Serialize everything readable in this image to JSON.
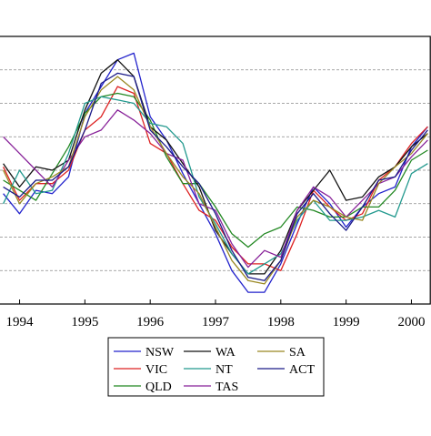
{
  "chart_data": {
    "type": "line",
    "title": "",
    "xlabel": "",
    "ylabel": "",
    "xlim": [
      1993.7,
      2000.3
    ],
    "ylim": [
      0,
      8
    ],
    "x_ticks": [
      1994,
      1995,
      1996,
      1997,
      1998,
      1999,
      2000
    ],
    "x_tick_labels": [
      "1994",
      "1995",
      "1996",
      "1997",
      "1998",
      "1999",
      "2000"
    ],
    "y_grid_values": [
      1,
      2,
      3,
      4,
      5,
      6,
      7
    ],
    "grid": "horizontal-dashed",
    "legend_position": "bottom-center",
    "x": [
      1993.75,
      1994.0,
      1994.25,
      1994.5,
      1994.75,
      1995.0,
      1995.25,
      1995.5,
      1995.75,
      1996.0,
      1996.25,
      1996.5,
      1996.75,
      1997.0,
      1997.25,
      1997.5,
      1997.75,
      1998.0,
      1998.25,
      1998.5,
      1998.75,
      1999.0,
      1999.25,
      1999.5,
      1999.75,
      2000.0,
      2000.25
    ],
    "series": [
      {
        "name": "NSW",
        "color": "#2222cc",
        "values": [
          3.3,
          2.7,
          3.4,
          3.3,
          3.8,
          5.7,
          6.5,
          7.3,
          7.5,
          5.6,
          4.9,
          3.9,
          3.0,
          2.1,
          1.0,
          0.35,
          0.35,
          1.2,
          2.4,
          3.5,
          3.0,
          2.3,
          2.9,
          3.3,
          3.5,
          4.7,
          5.3
        ]
      },
      {
        "name": "VIC",
        "color": "#dd2222",
        "values": [
          4.1,
          3.1,
          3.6,
          3.6,
          4.0,
          5.2,
          5.6,
          6.5,
          6.3,
          4.8,
          4.5,
          3.6,
          2.8,
          2.5,
          1.7,
          1.2,
          1.2,
          1.0,
          2.1,
          3.4,
          2.9,
          2.5,
          2.7,
          3.7,
          4.1,
          4.8,
          5.3
        ]
      },
      {
        "name": "QLD",
        "color": "#228822",
        "values": [
          3.7,
          3.4,
          3.1,
          3.9,
          4.7,
          5.7,
          6.2,
          6.3,
          6.2,
          5.5,
          4.4,
          3.6,
          3.6,
          2.9,
          2.1,
          1.7,
          2.1,
          2.3,
          2.9,
          2.8,
          2.6,
          2.6,
          2.9,
          2.9,
          3.4,
          4.3,
          4.6
        ]
      },
      {
        "name": "WA",
        "color": "#111111",
        "values": [
          4.2,
          3.5,
          4.1,
          4.0,
          4.3,
          5.8,
          6.9,
          7.3,
          6.8,
          5.3,
          4.9,
          4.2,
          3.5,
          2.2,
          1.5,
          0.9,
          0.9,
          1.6,
          2.8,
          3.4,
          4.0,
          3.1,
          3.2,
          3.8,
          4.1,
          4.7,
          5.1
        ]
      },
      {
        "name": "NT",
        "color": "#22998e",
        "values": [
          3.0,
          4.0,
          3.3,
          3.4,
          4.5,
          6.0,
          6.2,
          6.1,
          6.0,
          5.4,
          5.3,
          4.8,
          3.2,
          2.4,
          1.5,
          0.9,
          1.2,
          1.5,
          2.5,
          3.1,
          2.5,
          2.5,
          2.6,
          2.8,
          2.6,
          3.9,
          4.2
        ]
      },
      {
        "name": "TAS",
        "color": "#882299",
        "values": [
          5.0,
          4.5,
          4.0,
          3.5,
          4.3,
          5.0,
          5.2,
          5.8,
          5.5,
          5.1,
          4.5,
          4.3,
          3.0,
          2.8,
          1.8,
          1.1,
          1.6,
          1.4,
          2.8,
          3.5,
          3.2,
          2.6,
          3.1,
          3.6,
          3.8,
          4.4,
          4.9
        ]
      },
      {
        "name": "SA",
        "color": "#998822",
        "values": [
          4.0,
          3.0,
          3.6,
          3.8,
          4.1,
          5.6,
          6.4,
          6.8,
          6.4,
          5.3,
          4.5,
          3.8,
          3.3,
          2.3,
          1.3,
          0.7,
          0.6,
          1.3,
          2.6,
          3.1,
          2.9,
          2.6,
          2.5,
          3.6,
          4.1,
          4.5,
          5.1
        ]
      },
      {
        "name": "ACT",
        "color": "#1a1a88",
        "values": [
          3.5,
          3.2,
          3.7,
          3.7,
          4.1,
          5.2,
          6.6,
          6.9,
          6.8,
          5.2,
          4.7,
          4.1,
          3.6,
          2.7,
          1.6,
          0.8,
          0.7,
          1.3,
          2.7,
          3.3,
          2.7,
          2.2,
          2.9,
          3.7,
          3.8,
          4.6,
          5.2
        ]
      }
    ]
  }
}
